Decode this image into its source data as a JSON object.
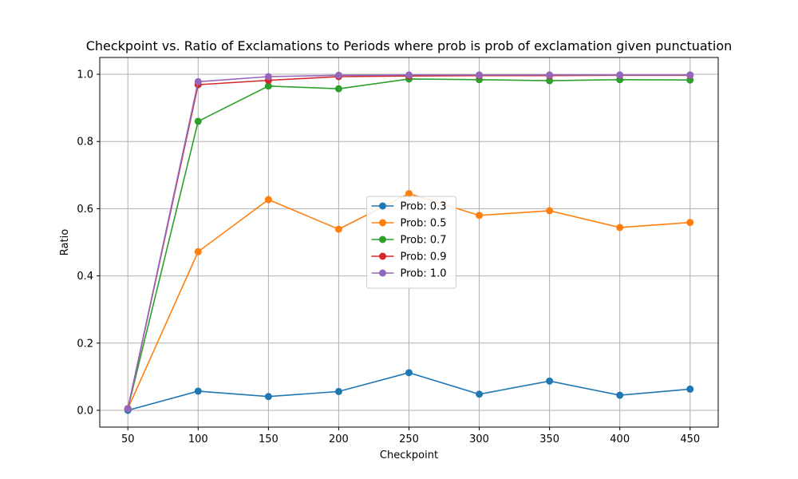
{
  "chart_data": {
    "type": "line",
    "title": "Checkpoint vs. Ratio of Exclamations to Periods where prob is prob of exclamation given punctuation",
    "xlabel": "Checkpoint",
    "ylabel": "Ratio",
    "x": [
      50,
      100,
      150,
      200,
      250,
      300,
      350,
      400,
      450
    ],
    "xlim": [
      30,
      470
    ],
    "ylim": [
      -0.05,
      1.05
    ],
    "xticks": [
      "50",
      "100",
      "150",
      "200",
      "250",
      "300",
      "350",
      "400",
      "450"
    ],
    "yticks": [
      "0.0",
      "0.2",
      "0.4",
      "0.6",
      "0.8",
      "1.0"
    ],
    "grid": true,
    "legend_position": "center",
    "series": [
      {
        "name": "Prob: 0.3",
        "color": "#1f77b4",
        "values": [
          0.0,
          0.057,
          0.041,
          0.056,
          0.112,
          0.048,
          0.087,
          0.045,
          0.063
        ]
      },
      {
        "name": "Prob: 0.5",
        "color": "#ff7f0e",
        "values": [
          0.005,
          0.472,
          0.627,
          0.539,
          0.645,
          0.58,
          0.594,
          0.544,
          0.559
        ]
      },
      {
        "name": "Prob: 0.7",
        "color": "#2ca02c",
        "values": [
          0.005,
          0.86,
          0.965,
          0.957,
          0.986,
          0.984,
          0.981,
          0.984,
          0.983
        ]
      },
      {
        "name": "Prob: 0.9",
        "color": "#d62728",
        "values": [
          0.005,
          0.969,
          0.982,
          0.993,
          0.995,
          0.996,
          0.996,
          0.997,
          0.997
        ]
      },
      {
        "name": "Prob: 1.0",
        "color": "#9467bd",
        "values": [
          0.005,
          0.978,
          0.993,
          0.997,
          0.998,
          0.998,
          0.998,
          0.998,
          0.998
        ]
      }
    ]
  }
}
